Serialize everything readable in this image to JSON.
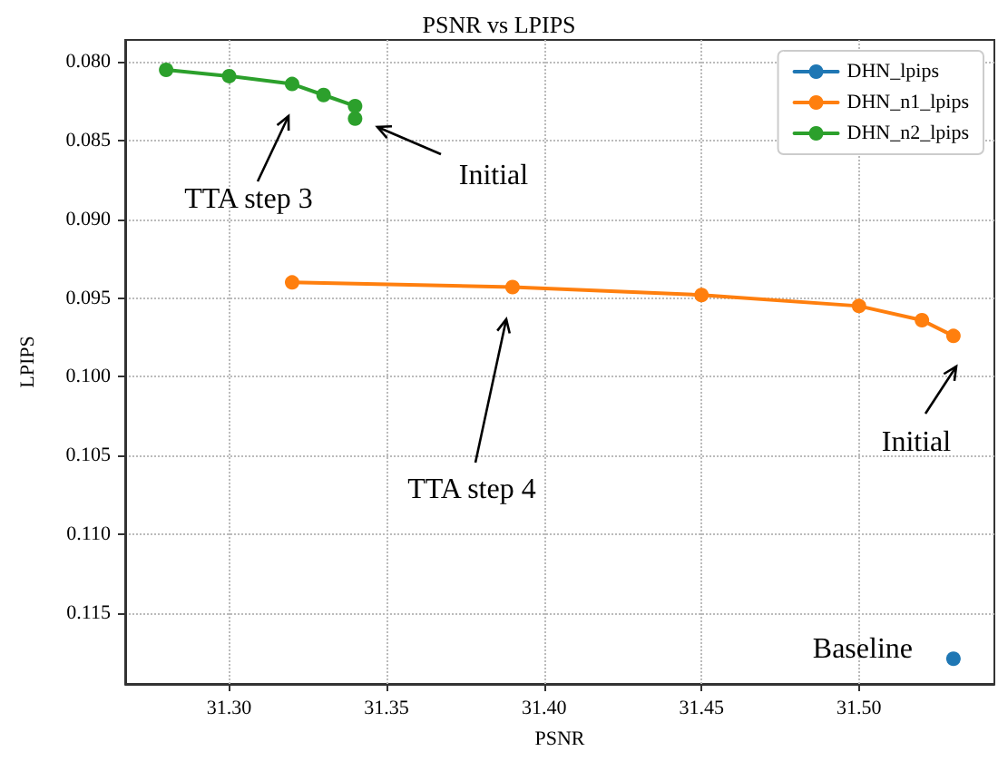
{
  "chart_data": {
    "type": "line",
    "title": "PSNR vs LPIPS",
    "xlabel": "PSNR",
    "ylabel": "LPIPS",
    "series": [
      {
        "name": "DHN_lpips",
        "color": "#1f77b4",
        "x": [
          31.53
        ],
        "values": [
          0.1179
        ]
      },
      {
        "name": "DHN_n1_lpips",
        "color": "#ff7f0e",
        "x": [
          31.53,
          31.52,
          31.5,
          31.45,
          31.39,
          31.32
        ],
        "values": [
          0.0974,
          0.0964,
          0.0955,
          0.0948,
          0.0943,
          0.094
        ]
      },
      {
        "name": "DHN_n2_lpips",
        "color": "#2ca02c",
        "x": [
          31.34,
          31.34,
          31.33,
          31.32,
          31.3,
          31.28
        ],
        "values": [
          0.0836,
          0.0828,
          0.0821,
          0.0814,
          0.0809,
          0.0805
        ]
      }
    ],
    "xlim": [
      31.267,
      31.543
    ],
    "xticks": [
      {
        "value": 31.3,
        "label": "31.30"
      },
      {
        "value": 31.35,
        "label": "31.35"
      },
      {
        "value": 31.4,
        "label": "31.40"
      },
      {
        "value": 31.45,
        "label": "31.45"
      },
      {
        "value": 31.5,
        "label": "31.50"
      }
    ],
    "ylim": [
      0.1195,
      0.0786
    ],
    "yticks": [
      {
        "value": 0.08,
        "label": "0.080"
      },
      {
        "value": 0.085,
        "label": "0.085"
      },
      {
        "value": 0.09,
        "label": "0.090"
      },
      {
        "value": 0.095,
        "label": "0.095"
      },
      {
        "value": 0.1,
        "label": "0.100"
      },
      {
        "value": 0.105,
        "label": "0.105"
      },
      {
        "value": 0.11,
        "label": "0.110"
      },
      {
        "value": 0.115,
        "label": "0.115"
      }
    ],
    "annotations": [
      "TTA step 3",
      "Initial",
      "TTA step 4",
      "Initial",
      {
        "text": "Baseline",
        "x": 31.53,
        "y": 0.1179
      }
    ],
    "grid": true,
    "legend": "top right",
    "marker": "circle",
    "line_style": "solid"
  }
}
